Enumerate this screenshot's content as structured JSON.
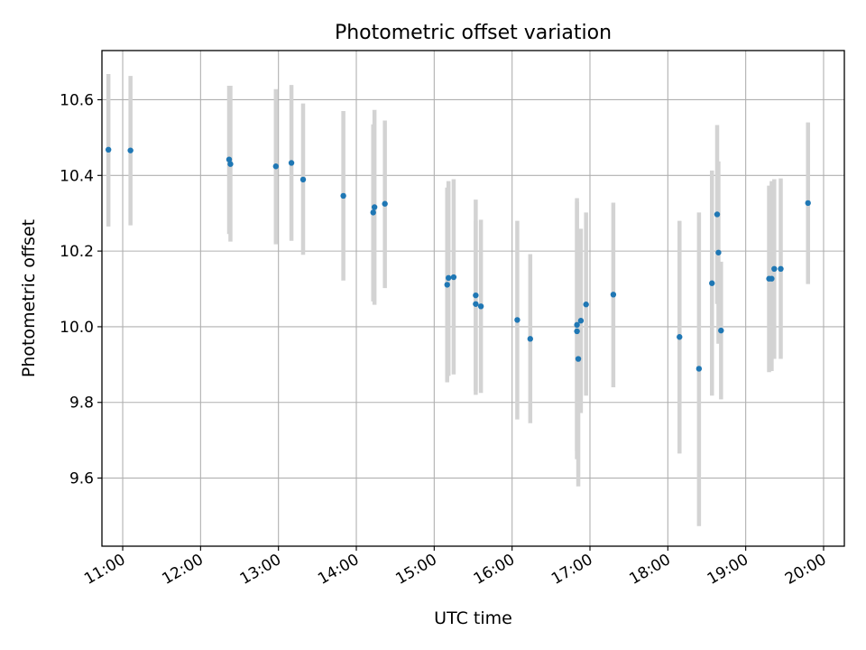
{
  "chart_data": {
    "type": "scatter",
    "title": "Photometric offset variation",
    "xlabel": "UTC time",
    "ylabel": "Photometric offset",
    "x_format": "HH:MM",
    "xlim": [
      "10:44",
      "20:16"
    ],
    "ylim": [
      9.42,
      10.73
    ],
    "xticks": [
      "11:00",
      "12:00",
      "13:00",
      "14:00",
      "15:00",
      "16:00",
      "17:00",
      "18:00",
      "19:00",
      "20:00"
    ],
    "yticks": [
      9.6,
      9.8,
      10.0,
      10.2,
      10.4,
      10.6
    ],
    "grid": true,
    "marker_color": "#1f77b4",
    "errorbar_color": "#d3d3d3",
    "points": [
      {
        "time": "10:49",
        "y": 10.468,
        "lo": 10.265,
        "hi": 10.668
      },
      {
        "time": "11:06",
        "y": 10.466,
        "lo": 10.268,
        "hi": 10.663
      },
      {
        "time": "12:22",
        "y": 10.442,
        "lo": 10.245,
        "hi": 10.637
      },
      {
        "time": "12:23",
        "y": 10.43,
        "lo": 10.225,
        "hi": 10.637
      },
      {
        "time": "12:58",
        "y": 10.424,
        "lo": 10.218,
        "hi": 10.628
      },
      {
        "time": "13:10",
        "y": 10.433,
        "lo": 10.227,
        "hi": 10.639
      },
      {
        "time": "13:19",
        "y": 10.389,
        "lo": 10.19,
        "hi": 10.59
      },
      {
        "time": "13:50",
        "y": 10.346,
        "lo": 10.122,
        "hi": 10.57
      },
      {
        "time": "14:13",
        "y": 10.302,
        "lo": 10.067,
        "hi": 10.535
      },
      {
        "time": "14:14",
        "y": 10.316,
        "lo": 10.058,
        "hi": 10.573
      },
      {
        "time": "14:22",
        "y": 10.325,
        "lo": 10.102,
        "hi": 10.545
      },
      {
        "time": "15:10",
        "y": 10.111,
        "lo": 9.853,
        "hi": 10.368
      },
      {
        "time": "15:11",
        "y": 10.129,
        "lo": 9.87,
        "hi": 10.385
      },
      {
        "time": "15:15",
        "y": 10.131,
        "lo": 9.874,
        "hi": 10.39
      },
      {
        "time": "15:32",
        "y": 10.083,
        "lo": 9.82,
        "hi": 10.336
      },
      {
        "time": "15:32",
        "y": 10.06,
        "lo": 9.83,
        "hi": 10.28
      },
      {
        "time": "15:36",
        "y": 10.054,
        "lo": 9.825,
        "hi": 10.283
      },
      {
        "time": "16:04",
        "y": 10.018,
        "lo": 9.755,
        "hi": 10.28
      },
      {
        "time": "16:14",
        "y": 9.968,
        "lo": 9.745,
        "hi": 10.192
      },
      {
        "time": "16:50",
        "y": 10.005,
        "lo": 9.672,
        "hi": 10.34
      },
      {
        "time": "16:50",
        "y": 9.988,
        "lo": 9.65,
        "hi": 10.33
      },
      {
        "time": "16:51",
        "y": 9.915,
        "lo": 9.578,
        "hi": 10.258
      },
      {
        "time": "16:53",
        "y": 10.016,
        "lo": 9.772,
        "hi": 10.259
      },
      {
        "time": "16:57",
        "y": 10.059,
        "lo": 9.818,
        "hi": 10.302
      },
      {
        "time": "17:18",
        "y": 10.085,
        "lo": 9.84,
        "hi": 10.328
      },
      {
        "time": "18:09",
        "y": 9.973,
        "lo": 9.665,
        "hi": 10.28
      },
      {
        "time": "18:24",
        "y": 9.889,
        "lo": 9.473,
        "hi": 10.302
      },
      {
        "time": "18:34",
        "y": 10.115,
        "lo": 9.818,
        "hi": 10.413
      },
      {
        "time": "18:38",
        "y": 10.297,
        "lo": 10.06,
        "hi": 10.533
      },
      {
        "time": "18:39",
        "y": 10.196,
        "lo": 9.955,
        "hi": 10.437
      },
      {
        "time": "18:41",
        "y": 9.99,
        "lo": 9.808,
        "hi": 10.172
      },
      {
        "time": "19:18",
        "y": 10.127,
        "lo": 9.88,
        "hi": 10.373
      },
      {
        "time": "19:20",
        "y": 10.127,
        "lo": 9.883,
        "hi": 10.385
      },
      {
        "time": "19:22",
        "y": 10.153,
        "lo": 9.915,
        "hi": 10.39
      },
      {
        "time": "19:27",
        "y": 10.153,
        "lo": 9.915,
        "hi": 10.392
      },
      {
        "time": "19:48",
        "y": 10.327,
        "lo": 10.113,
        "hi": 10.54
      }
    ]
  }
}
